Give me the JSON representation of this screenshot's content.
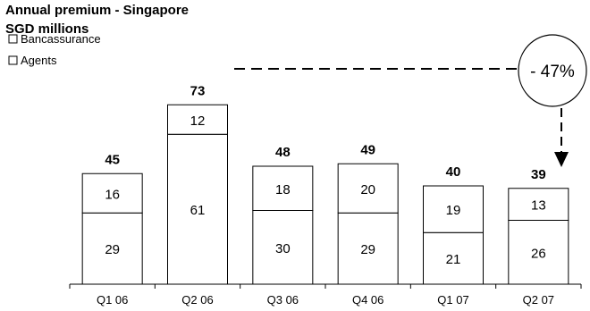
{
  "chart_data": {
    "type": "bar",
    "stacked": true,
    "title": "Annual premium - Singapore",
    "subtitle": "SGD millions",
    "categories": [
      "Q1 06",
      "Q2 06",
      "Q3 06",
      "Q4 06",
      "Q1 07",
      "Q2 07"
    ],
    "series": [
      {
        "name": "Agents",
        "values": [
          29,
          61,
          30,
          29,
          21,
          26
        ]
      },
      {
        "name": "Bancassurance",
        "values": [
          16,
          12,
          18,
          20,
          19,
          13
        ]
      }
    ],
    "totals": [
      45,
      73,
      48,
      49,
      40,
      39
    ],
    "legend": [
      "Bancassurance",
      "Agents"
    ],
    "legend_position": "top-left",
    "annotation": "- 47%",
    "grid": false,
    "ylim": [
      0,
      80
    ]
  }
}
